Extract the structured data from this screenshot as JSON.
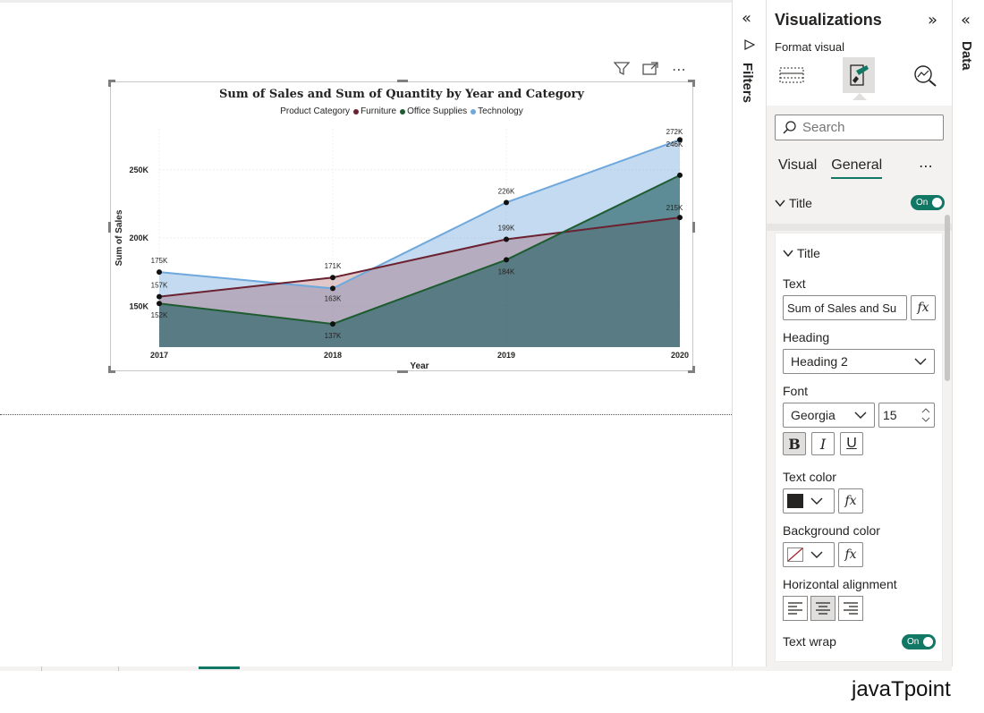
{
  "visual_header": {
    "filter_icon": "filter-icon",
    "focus_icon": "focus-mode-icon",
    "more_icon": "more-options-icon",
    "more_label": "⋯"
  },
  "chart_data": {
    "type": "area",
    "title": "Sum of Sales and Sum of Quantity by Year and Category",
    "legend_title": "Product Category",
    "xlabel": "Year",
    "ylabel": "Sum of Sales",
    "categories": [
      "2017",
      "2018",
      "2019",
      "2020"
    ],
    "y_ticks": [
      "150K",
      "200K",
      "250K"
    ],
    "y_tick_values": [
      150000,
      200000,
      250000
    ],
    "ylim": [
      120000,
      280000
    ],
    "series": [
      {
        "name": "Furniture",
        "color": "#6b2130",
        "values": [
          157000,
          171000,
          199000,
          215000
        ],
        "labels": [
          "157K",
          "171K",
          "199K",
          "215K"
        ]
      },
      {
        "name": "Office Supplies",
        "color": "#1e5c30",
        "values": [
          152000,
          137000,
          184000,
          246000
        ],
        "labels": [
          "152K",
          "137K",
          "184K",
          "246K"
        ]
      },
      {
        "name": "Technology",
        "color": "#6fa8dc",
        "values": [
          175000,
          163000,
          226000,
          272000
        ],
        "labels": [
          "175K",
          "163K",
          "226K",
          "272K"
        ]
      }
    ],
    "grid": true,
    "legend_position": "top"
  },
  "filters": {
    "label": "Filters",
    "collapse_icon": "«"
  },
  "viz_pane": {
    "title": "Visualizations",
    "expand_icon": "»",
    "format_visual": "Format visual",
    "search_placeholder": "Search",
    "subtabs": [
      "Visual",
      "General"
    ],
    "more": "⋯",
    "section_title": "Title",
    "section_toggle": "On",
    "card": {
      "header": "Title",
      "text_label": "Text",
      "text_value": "Sum of Sales and Su",
      "fx": "fx",
      "heading_label": "Heading",
      "heading_value": "Heading 2",
      "font_label": "Font",
      "font_value": "Georgia",
      "font_size": "15",
      "bold": "B",
      "italic": "I",
      "underline": "U",
      "text_color_label": "Text color",
      "text_color": "#252423",
      "bg_color_label": "Background color",
      "align_label": "Horizontal alignment",
      "wrap_label": "Text wrap",
      "wrap_toggle": "On"
    }
  },
  "data_pane": {
    "label": "Data",
    "collapse_icon": "«"
  },
  "brand": "javaTpoint"
}
